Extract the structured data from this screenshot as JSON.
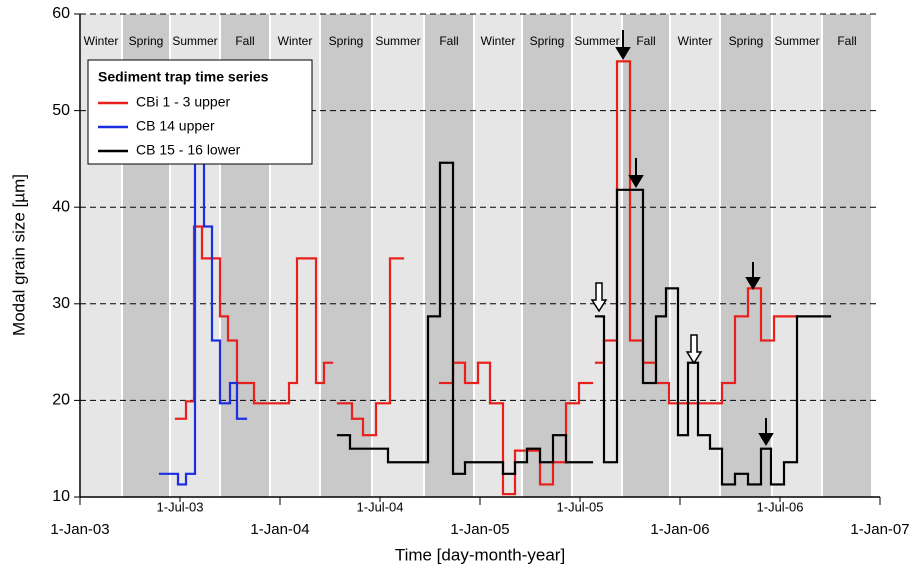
{
  "chart_data": {
    "type": "step",
    "x_label": "Time [day-month-year]",
    "y_label": "Modal grain size [µm]",
    "legend_title": "Sediment trap time series",
    "legend_position": "upper left",
    "grid": true,
    "xlim": [
      2003.0,
      2007.0
    ],
    "ylim": [
      10,
      60
    ],
    "yticks": [
      10,
      20,
      30,
      40,
      50,
      60
    ],
    "xticks": [
      {
        "value": 2003.0,
        "label": "1-Jan-03"
      },
      {
        "value": 2003.5,
        "label": "1-Jul-03"
      },
      {
        "value": 2004.0,
        "label": "1-Jan-04"
      },
      {
        "value": 2004.5,
        "label": "1-Jul-04"
      },
      {
        "value": 2005.0,
        "label": "1-Jan-05"
      },
      {
        "value": 2005.5,
        "label": "1-Jul-05"
      },
      {
        "value": 2006.0,
        "label": "1-Jan-06"
      },
      {
        "value": 2006.5,
        "label": "1-Jul-06"
      },
      {
        "value": 2007.0,
        "label": "1-Jan-07"
      }
    ],
    "season_colors": [
      "#e6e6e6",
      "#c9c9c9"
    ],
    "seasons": [
      {
        "name": "Winter",
        "start": 2003.0,
        "end": 2003.21
      },
      {
        "name": "Spring",
        "start": 2003.21,
        "end": 2003.45
      },
      {
        "name": "Summer",
        "start": 2003.45,
        "end": 2003.7
      },
      {
        "name": "Fall",
        "start": 2003.7,
        "end": 2003.95
      },
      {
        "name": "Winter",
        "start": 2003.95,
        "end": 2004.2
      },
      {
        "name": "Spring",
        "start": 2004.2,
        "end": 2004.46
      },
      {
        "name": "Summer",
        "start": 2004.46,
        "end": 2004.72
      },
      {
        "name": "Fall",
        "start": 2004.72,
        "end": 2004.97
      },
      {
        "name": "Winter",
        "start": 2004.97,
        "end": 2005.21
      },
      {
        "name": "Spring",
        "start": 2005.21,
        "end": 2005.46
      },
      {
        "name": "Summer",
        "start": 2005.46,
        "end": 2005.71
      },
      {
        "name": "Fall",
        "start": 2005.71,
        "end": 2005.95
      },
      {
        "name": "Winter",
        "start": 2005.95,
        "end": 2006.2
      },
      {
        "name": "Spring",
        "start": 2006.2,
        "end": 2006.46
      },
      {
        "name": "Summer",
        "start": 2006.46,
        "end": 2006.71
      },
      {
        "name": "Fall",
        "start": 2006.71,
        "end": 2006.96
      }
    ],
    "series": [
      {
        "name": "CBi 1 - 3 upper",
        "color": "#e8201c",
        "x": [
          2003.41,
          2003.46,
          2003.48,
          2003.53,
          2003.57,
          2003.61,
          2003.7,
          2003.74,
          2003.785,
          2003.87,
          2004.045,
          2004.085,
          2004.18,
          2004.22,
          2004.26,
          2004.29,
          2004.36,
          2004.415,
          2004.48,
          2004.55,
          2004.615,
          2004.8,
          2004.865,
          2004.925,
          2004.99,
          2005.05,
          2005.115,
          2005.175,
          2005.3,
          2005.365,
          2005.43,
          2005.495,
          2005.56,
          2005.58,
          2005.62,
          2005.685,
          2005.75,
          2005.815,
          2005.88,
          2005.945,
          2006.21,
          2006.275,
          2006.34,
          2006.405,
          2006.47,
          2006.585
        ],
        "values": [
          44.6,
          null,
          18.1,
          19.9,
          38.0,
          34.7,
          28.7,
          26.2,
          21.8,
          19.7,
          21.8,
          34.7,
          21.8,
          23.9,
          null,
          19.7,
          18.1,
          16.4,
          19.7,
          34.7,
          null,
          21.8,
          23.9,
          21.8,
          23.9,
          19.7,
          10.3,
          14.8,
          11.3,
          13.6,
          19.7,
          21.8,
          null,
          23.9,
          26.2,
          55.1,
          26.2,
          23.9,
          21.8,
          19.7,
          21.8,
          28.7,
          31.6,
          26.2,
          28.7,
          null
        ]
      },
      {
        "name": "CB 14 upper",
        "color": "#1c2ee0",
        "x": [
          2003.4,
          2003.49,
          2003.53,
          2003.575,
          2003.62,
          2003.66,
          2003.7,
          2003.75,
          2003.785,
          2003.83
        ],
        "values": [
          12.4,
          11.3,
          12.4,
          44.6,
          38.0,
          26.2,
          19.7,
          21.8,
          18.1,
          null
        ]
      },
      {
        "name": "CB 15 - 16 lower",
        "color": "#000000",
        "x": [
          2004.29,
          2004.35,
          2004.54,
          2004.74,
          2004.8,
          2004.865,
          2004.925,
          2005.115,
          2005.175,
          2005.235,
          2005.3,
          2005.365,
          2005.43,
          2005.56,
          2005.58,
          2005.62,
          2005.685,
          2005.815,
          2005.88,
          2005.93,
          2005.99,
          2006.04,
          2006.09,
          2006.15,
          2006.21,
          2006.275,
          2006.34,
          2006.405,
          2006.455,
          2006.52,
          2006.585,
          2006.75
        ],
        "values": [
          16.4,
          15.0,
          13.6,
          28.7,
          44.6,
          12.4,
          13.6,
          12.4,
          13.6,
          15.0,
          13.6,
          16.4,
          13.6,
          null,
          28.7,
          13.6,
          41.8,
          21.8,
          28.7,
          31.6,
          16.4,
          23.9,
          16.4,
          15.0,
          11.3,
          12.4,
          11.3,
          15.0,
          11.3,
          13.6,
          28.7,
          null
        ]
      }
    ]
  }
}
